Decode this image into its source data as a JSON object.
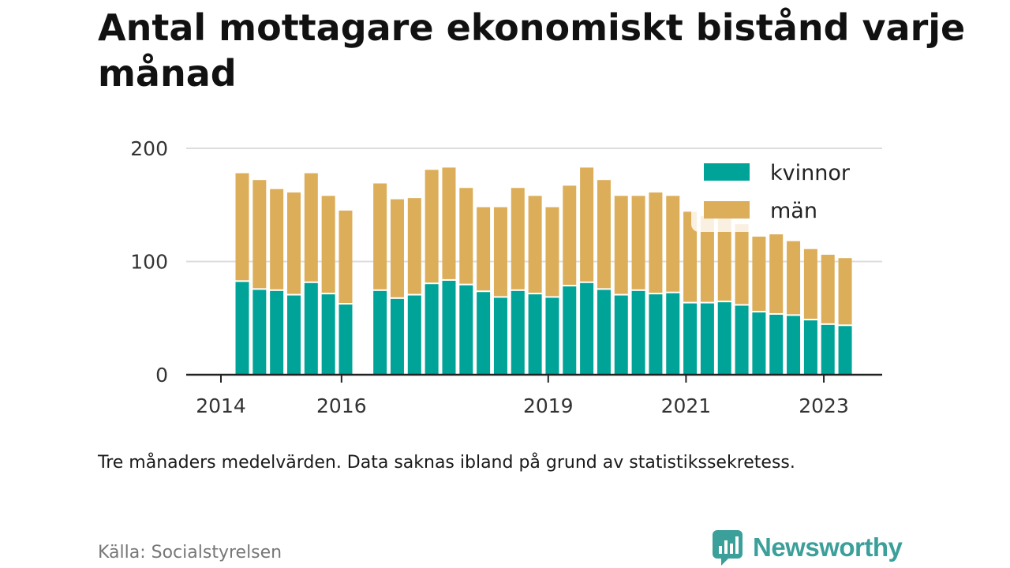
{
  "title": "Antal mottagare ekonomiskt bistånd varje månad",
  "note": "Tre månaders medelvärden. Data saknas ibland på grund av statistikssekretess.",
  "source": "Källa: Socialstyrelsen",
  "brand": {
    "name": "Newsworthy",
    "logo_icon": "bar-chart-speech-bubble-icon"
  },
  "colors": {
    "kvinnor": "#00a398",
    "man": "#dcae5a",
    "grid": "#dddddd",
    "axis": "#222222"
  },
  "chart_data": {
    "type": "bar",
    "stacked": true,
    "x_unit": "quarter",
    "x": [
      "2014-Q2",
      "2014-Q3",
      "2014-Q4",
      "2015-Q1",
      "2015-Q2",
      "2015-Q3",
      "2015-Q4",
      "2016-Q1",
      "2016-Q2",
      "2016-Q3",
      "2016-Q4",
      "2017-Q1",
      "2017-Q2",
      "2017-Q3",
      "2017-Q4",
      "2018-Q1",
      "2018-Q2",
      "2018-Q3",
      "2018-Q4",
      "2019-Q1",
      "2019-Q2",
      "2019-Q3",
      "2019-Q4",
      "2020-Q1",
      "2020-Q2",
      "2020-Q3",
      "2020-Q4",
      "2021-Q1",
      "2021-Q2",
      "2021-Q3",
      "2021-Q4",
      "2022-Q1",
      "2022-Q2",
      "2022-Q3",
      "2022-Q4",
      "2023-Q1"
    ],
    "series": [
      {
        "name": "kvinnor",
        "values": [
          82,
          75,
          74,
          70,
          81,
          71,
          62,
          null,
          74,
          67,
          70,
          80,
          83,
          79,
          73,
          68,
          74,
          71,
          68,
          78,
          81,
          75,
          70,
          74,
          71,
          72,
          63,
          63,
          64,
          61,
          55,
          53,
          52,
          48,
          44,
          43
        ]
      },
      {
        "name": "män",
        "values": [
          96,
          97,
          90,
          91,
          97,
          87,
          83,
          null,
          95,
          88,
          86,
          101,
          100,
          86,
          75,
          80,
          91,
          87,
          80,
          89,
          102,
          97,
          88,
          84,
          90,
          86,
          81,
          77,
          75,
          72,
          67,
          71,
          66,
          63,
          62,
          60
        ]
      }
    ],
    "legend": [
      "kvinnor",
      "män"
    ],
    "legend_position": "top-right",
    "ylim": [
      0,
      200
    ],
    "yticks": [
      0,
      100,
      200
    ],
    "xticks": [
      {
        "label": "2014",
        "at": "2014-Q2"
      },
      {
        "label": "2016",
        "at": "2016-Q1"
      },
      {
        "label": "2019",
        "at": "2019-Q1"
      },
      {
        "label": "2021",
        "at": "2021-Q1"
      },
      {
        "label": "2023",
        "at": "2023-Q1"
      }
    ],
    "grid": true
  }
}
